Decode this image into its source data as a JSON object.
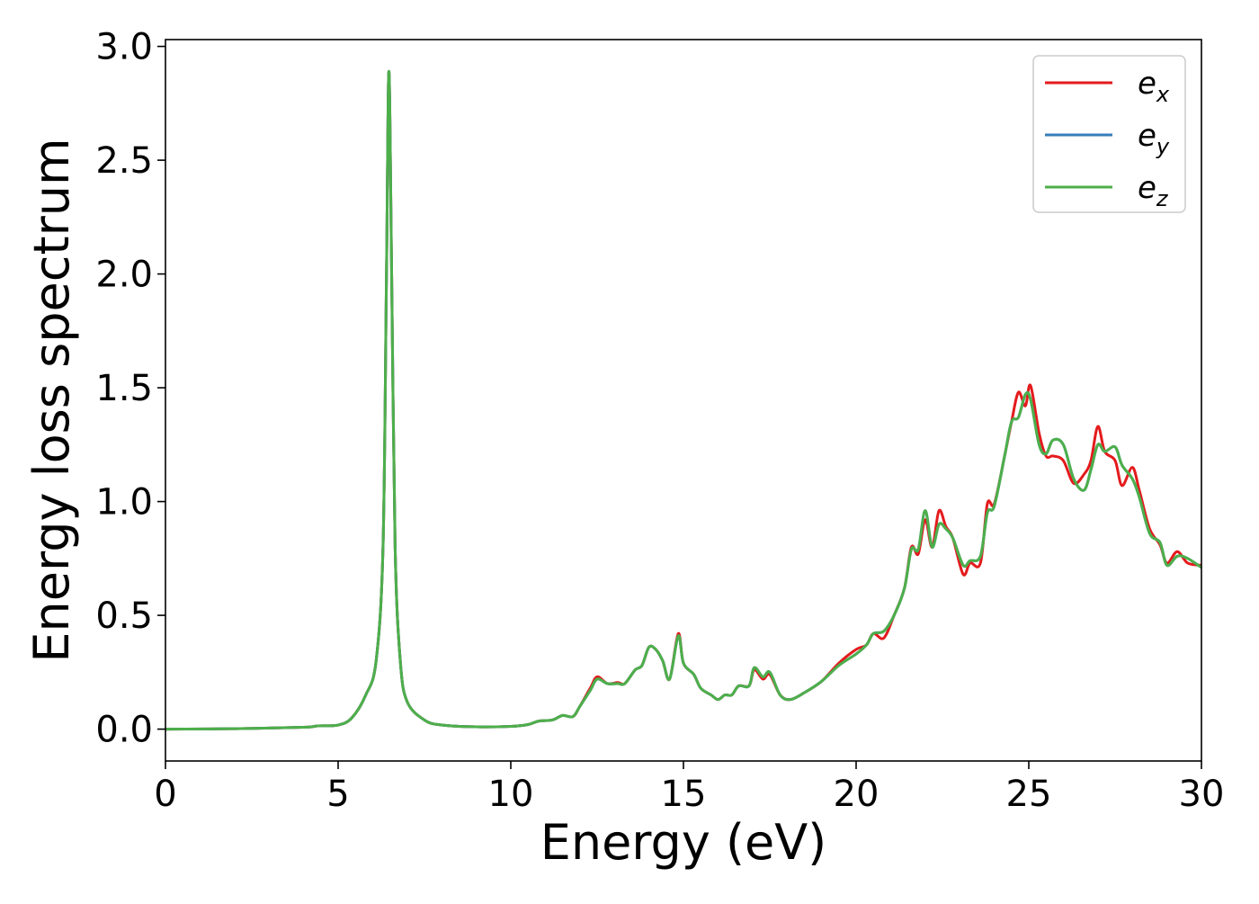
{
  "chart_data": {
    "type": "line",
    "title": "",
    "xlabel": "Energy (eV)",
    "ylabel": "Energy loss spectrum",
    "xlim": [
      0,
      30
    ],
    "ylim": [
      -0.14,
      3.03
    ],
    "xticks": [
      0,
      5,
      10,
      15,
      20,
      25,
      30
    ],
    "xtick_labels": [
      "0",
      "5",
      "10",
      "15",
      "20",
      "25",
      "30"
    ],
    "yticks": [
      0.0,
      0.5,
      1.0,
      1.5,
      2.0,
      2.5,
      3.0
    ],
    "ytick_labels": [
      "0.0",
      "0.5",
      "1.0",
      "1.5",
      "2.0",
      "2.5",
      "3.0"
    ],
    "grid": false,
    "legend_position": "top-right",
    "series": [
      {
        "name": "e_x",
        "label_base": "e",
        "label_sub": "x",
        "color": "#e41a1c",
        "points": [
          [
            0,
            0.0
          ],
          [
            2,
            0.002
          ],
          [
            4,
            0.008
          ],
          [
            4.4,
            0.014
          ],
          [
            5,
            0.018
          ],
          [
            5.4,
            0.05
          ],
          [
            5.8,
            0.15
          ],
          [
            6.1,
            0.3
          ],
          [
            6.3,
            0.8
          ],
          [
            6.4,
            2.0
          ],
          [
            6.47,
            2.89
          ],
          [
            6.55,
            2.0
          ],
          [
            6.65,
            0.8
          ],
          [
            6.8,
            0.3
          ],
          [
            7.0,
            0.12
          ],
          [
            7.5,
            0.04
          ],
          [
            8,
            0.018
          ],
          [
            9,
            0.01
          ],
          [
            10,
            0.012
          ],
          [
            10.5,
            0.02
          ],
          [
            10.8,
            0.035
          ],
          [
            11.2,
            0.04
          ],
          [
            11.5,
            0.06
          ],
          [
            11.8,
            0.055
          ],
          [
            12.0,
            0.1
          ],
          [
            12.3,
            0.18
          ],
          [
            12.5,
            0.23
          ],
          [
            12.8,
            0.2
          ],
          [
            13.1,
            0.205
          ],
          [
            13.3,
            0.2
          ],
          [
            13.6,
            0.26
          ],
          [
            13.8,
            0.28
          ],
          [
            14.0,
            0.36
          ],
          [
            14.2,
            0.35
          ],
          [
            14.4,
            0.3
          ],
          [
            14.6,
            0.22
          ],
          [
            14.85,
            0.42
          ],
          [
            15.0,
            0.29
          ],
          [
            15.3,
            0.24
          ],
          [
            15.5,
            0.18
          ],
          [
            15.8,
            0.15
          ],
          [
            16.0,
            0.13
          ],
          [
            16.2,
            0.15
          ],
          [
            16.4,
            0.15
          ],
          [
            16.6,
            0.19
          ],
          [
            16.9,
            0.19
          ],
          [
            17.05,
            0.26
          ],
          [
            17.3,
            0.22
          ],
          [
            17.5,
            0.24
          ],
          [
            17.8,
            0.15
          ],
          [
            18.1,
            0.13
          ],
          [
            18.5,
            0.16
          ],
          [
            19.0,
            0.21
          ],
          [
            19.5,
            0.29
          ],
          [
            20.0,
            0.35
          ],
          [
            20.3,
            0.37
          ],
          [
            20.5,
            0.42
          ],
          [
            20.8,
            0.4
          ],
          [
            21.1,
            0.5
          ],
          [
            21.4,
            0.62
          ],
          [
            21.6,
            0.8
          ],
          [
            21.8,
            0.77
          ],
          [
            22.0,
            0.92
          ],
          [
            22.2,
            0.8
          ],
          [
            22.4,
            0.96
          ],
          [
            22.6,
            0.89
          ],
          [
            22.8,
            0.84
          ],
          [
            23.1,
            0.68
          ],
          [
            23.3,
            0.73
          ],
          [
            23.6,
            0.73
          ],
          [
            23.8,
            0.99
          ],
          [
            24.0,
            0.99
          ],
          [
            24.3,
            1.2
          ],
          [
            24.5,
            1.35
          ],
          [
            24.7,
            1.48
          ],
          [
            24.9,
            1.42
          ],
          [
            25.05,
            1.51
          ],
          [
            25.3,
            1.3
          ],
          [
            25.5,
            1.2
          ],
          [
            25.7,
            1.2
          ],
          [
            26.0,
            1.18
          ],
          [
            26.3,
            1.08
          ],
          [
            26.6,
            1.12
          ],
          [
            26.8,
            1.18
          ],
          [
            27.0,
            1.33
          ],
          [
            27.2,
            1.22
          ],
          [
            27.5,
            1.18
          ],
          [
            27.7,
            1.07
          ],
          [
            28.0,
            1.15
          ],
          [
            28.2,
            1.05
          ],
          [
            28.5,
            0.88
          ],
          [
            28.8,
            0.81
          ],
          [
            29.0,
            0.73
          ],
          [
            29.3,
            0.78
          ],
          [
            29.6,
            0.73
          ],
          [
            30.0,
            0.72
          ]
        ]
      },
      {
        "name": "e_y",
        "label_base": "e",
        "label_sub": "y",
        "color": "#377eb8",
        "points": [
          [
            0,
            0.0
          ],
          [
            2,
            0.002
          ],
          [
            4,
            0.008
          ],
          [
            4.4,
            0.014
          ],
          [
            5,
            0.018
          ],
          [
            5.4,
            0.05
          ],
          [
            5.8,
            0.15
          ],
          [
            6.1,
            0.3
          ],
          [
            6.3,
            0.8
          ],
          [
            6.4,
            2.0
          ],
          [
            6.47,
            2.89
          ],
          [
            6.55,
            2.0
          ],
          [
            6.65,
            0.8
          ],
          [
            6.8,
            0.3
          ],
          [
            7.0,
            0.12
          ],
          [
            7.5,
            0.04
          ],
          [
            8,
            0.018
          ],
          [
            9,
            0.01
          ],
          [
            10,
            0.012
          ],
          [
            10.5,
            0.02
          ],
          [
            10.8,
            0.035
          ],
          [
            11.2,
            0.04
          ],
          [
            11.5,
            0.06
          ],
          [
            11.8,
            0.055
          ],
          [
            12.0,
            0.1
          ],
          [
            12.3,
            0.17
          ],
          [
            12.5,
            0.22
          ],
          [
            12.8,
            0.2
          ],
          [
            13.1,
            0.2
          ],
          [
            13.3,
            0.2
          ],
          [
            13.6,
            0.26
          ],
          [
            13.8,
            0.28
          ],
          [
            14.0,
            0.36
          ],
          [
            14.2,
            0.35
          ],
          [
            14.4,
            0.3
          ],
          [
            14.6,
            0.22
          ],
          [
            14.85,
            0.41
          ],
          [
            15.0,
            0.29
          ],
          [
            15.3,
            0.24
          ],
          [
            15.5,
            0.18
          ],
          [
            15.8,
            0.15
          ],
          [
            16.0,
            0.13
          ],
          [
            16.2,
            0.15
          ],
          [
            16.4,
            0.15
          ],
          [
            16.6,
            0.19
          ],
          [
            16.9,
            0.19
          ],
          [
            17.05,
            0.27
          ],
          [
            17.3,
            0.23
          ],
          [
            17.5,
            0.25
          ],
          [
            17.8,
            0.15
          ],
          [
            18.1,
            0.13
          ],
          [
            18.5,
            0.16
          ],
          [
            19.0,
            0.21
          ],
          [
            19.5,
            0.28
          ],
          [
            20.0,
            0.33
          ],
          [
            20.3,
            0.37
          ],
          [
            20.5,
            0.42
          ],
          [
            20.8,
            0.43
          ],
          [
            21.1,
            0.5
          ],
          [
            21.4,
            0.62
          ],
          [
            21.6,
            0.79
          ],
          [
            21.8,
            0.79
          ],
          [
            22.0,
            0.96
          ],
          [
            22.2,
            0.8
          ],
          [
            22.4,
            0.9
          ],
          [
            22.6,
            0.88
          ],
          [
            22.8,
            0.84
          ],
          [
            23.1,
            0.72
          ],
          [
            23.3,
            0.74
          ],
          [
            23.6,
            0.76
          ],
          [
            23.8,
            0.95
          ],
          [
            24.0,
            0.98
          ],
          [
            24.3,
            1.2
          ],
          [
            24.5,
            1.35
          ],
          [
            24.7,
            1.37
          ],
          [
            24.9,
            1.47
          ],
          [
            25.05,
            1.45
          ],
          [
            25.3,
            1.25
          ],
          [
            25.5,
            1.21
          ],
          [
            25.7,
            1.27
          ],
          [
            26.0,
            1.25
          ],
          [
            26.3,
            1.1
          ],
          [
            26.6,
            1.05
          ],
          [
            26.8,
            1.14
          ],
          [
            27.0,
            1.25
          ],
          [
            27.2,
            1.22
          ],
          [
            27.5,
            1.24
          ],
          [
            27.7,
            1.16
          ],
          [
            28.0,
            1.1
          ],
          [
            28.2,
            1.02
          ],
          [
            28.5,
            0.86
          ],
          [
            28.8,
            0.82
          ],
          [
            29.0,
            0.72
          ],
          [
            29.3,
            0.76
          ],
          [
            29.6,
            0.75
          ],
          [
            30.0,
            0.71
          ]
        ]
      },
      {
        "name": "e_z",
        "label_base": "e",
        "label_sub": "z",
        "color": "#4daf4a",
        "points": [
          [
            0,
            0.0
          ],
          [
            2,
            0.002
          ],
          [
            4,
            0.008
          ],
          [
            4.4,
            0.014
          ],
          [
            5,
            0.018
          ],
          [
            5.4,
            0.05
          ],
          [
            5.8,
            0.15
          ],
          [
            6.1,
            0.3
          ],
          [
            6.3,
            0.8
          ],
          [
            6.4,
            2.0
          ],
          [
            6.47,
            2.89
          ],
          [
            6.55,
            2.0
          ],
          [
            6.65,
            0.8
          ],
          [
            6.8,
            0.3
          ],
          [
            7.0,
            0.12
          ],
          [
            7.5,
            0.04
          ],
          [
            8,
            0.018
          ],
          [
            9,
            0.01
          ],
          [
            10,
            0.012
          ],
          [
            10.5,
            0.02
          ],
          [
            10.8,
            0.035
          ],
          [
            11.2,
            0.04
          ],
          [
            11.5,
            0.06
          ],
          [
            11.8,
            0.055
          ],
          [
            12.0,
            0.1
          ],
          [
            12.3,
            0.17
          ],
          [
            12.5,
            0.22
          ],
          [
            12.8,
            0.2
          ],
          [
            13.1,
            0.2
          ],
          [
            13.3,
            0.2
          ],
          [
            13.6,
            0.26
          ],
          [
            13.8,
            0.28
          ],
          [
            14.0,
            0.36
          ],
          [
            14.2,
            0.35
          ],
          [
            14.4,
            0.3
          ],
          [
            14.6,
            0.22
          ],
          [
            14.85,
            0.41
          ],
          [
            15.0,
            0.29
          ],
          [
            15.3,
            0.24
          ],
          [
            15.5,
            0.18
          ],
          [
            15.8,
            0.15
          ],
          [
            16.0,
            0.13
          ],
          [
            16.2,
            0.15
          ],
          [
            16.4,
            0.15
          ],
          [
            16.6,
            0.19
          ],
          [
            16.9,
            0.19
          ],
          [
            17.05,
            0.27
          ],
          [
            17.3,
            0.23
          ],
          [
            17.5,
            0.25
          ],
          [
            17.8,
            0.15
          ],
          [
            18.1,
            0.13
          ],
          [
            18.5,
            0.16
          ],
          [
            19.0,
            0.21
          ],
          [
            19.5,
            0.28
          ],
          [
            20.0,
            0.33
          ],
          [
            20.3,
            0.37
          ],
          [
            20.5,
            0.42
          ],
          [
            20.8,
            0.43
          ],
          [
            21.1,
            0.5
          ],
          [
            21.4,
            0.62
          ],
          [
            21.6,
            0.79
          ],
          [
            21.8,
            0.79
          ],
          [
            22.0,
            0.96
          ],
          [
            22.2,
            0.8
          ],
          [
            22.4,
            0.9
          ],
          [
            22.6,
            0.88
          ],
          [
            22.8,
            0.84
          ],
          [
            23.1,
            0.72
          ],
          [
            23.3,
            0.74
          ],
          [
            23.6,
            0.76
          ],
          [
            23.8,
            0.95
          ],
          [
            24.0,
            0.98
          ],
          [
            24.3,
            1.2
          ],
          [
            24.5,
            1.35
          ],
          [
            24.7,
            1.37
          ],
          [
            24.9,
            1.47
          ],
          [
            25.05,
            1.45
          ],
          [
            25.3,
            1.25
          ],
          [
            25.5,
            1.21
          ],
          [
            25.7,
            1.27
          ],
          [
            26.0,
            1.25
          ],
          [
            26.3,
            1.1
          ],
          [
            26.6,
            1.05
          ],
          [
            26.8,
            1.14
          ],
          [
            27.0,
            1.25
          ],
          [
            27.2,
            1.22
          ],
          [
            27.5,
            1.24
          ],
          [
            27.7,
            1.16
          ],
          [
            28.0,
            1.1
          ],
          [
            28.2,
            1.02
          ],
          [
            28.5,
            0.86
          ],
          [
            28.8,
            0.82
          ],
          [
            29.0,
            0.72
          ],
          [
            29.3,
            0.76
          ],
          [
            29.6,
            0.75
          ],
          [
            30.0,
            0.71
          ]
        ]
      }
    ]
  }
}
